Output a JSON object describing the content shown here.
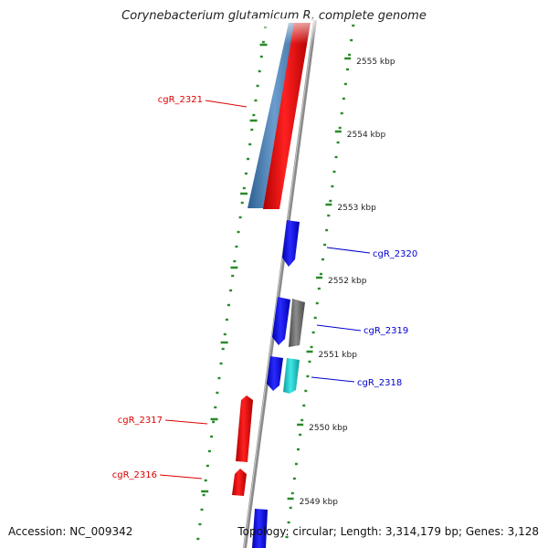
{
  "title": "Corynebacterium glutamicum R, complete genome",
  "accession": "Accession: NC_009342",
  "topology": "Topology: circular; Length: 3,314,179 bp; Genes: 3,128",
  "kbp_ticks": [
    {
      "label": "2555 kbp",
      "kbp": 2555
    },
    {
      "label": "2554 kbp",
      "kbp": 2554
    },
    {
      "label": "2553 kbp",
      "kbp": 2553
    },
    {
      "label": "2552 kbp",
      "kbp": 2552
    },
    {
      "label": "2551 kbp",
      "kbp": 2551
    },
    {
      "label": "2550 kbp",
      "kbp": 2550
    },
    {
      "label": "2549 kbp",
      "kbp": 2549
    }
  ],
  "gene_labels": [
    {
      "id": "cgR_2321",
      "strand": "minus",
      "color": "#dd0000"
    },
    {
      "id": "cgR_2320",
      "strand": "plus",
      "color": "#0000cc"
    },
    {
      "id": "cgR_2319",
      "strand": "plus",
      "color": "#0000cc"
    },
    {
      "id": "cgR_2318",
      "strand": "plus",
      "color": "#0000cc"
    },
    {
      "id": "cgR_2317",
      "strand": "minus",
      "color": "#dd0000"
    },
    {
      "id": "cgR_2316",
      "strand": "minus",
      "color": "#dd0000"
    }
  ],
  "colors": {
    "backbone": "#8a8a8a",
    "dotted_ruler": "#2a8a2a",
    "forward_cds": "#0000ee",
    "reverse_cds": "#ee0000",
    "steelblue_feature": "#4a7db5",
    "grey_feature": "#707070",
    "cyan_feature": "#20c8c8"
  }
}
